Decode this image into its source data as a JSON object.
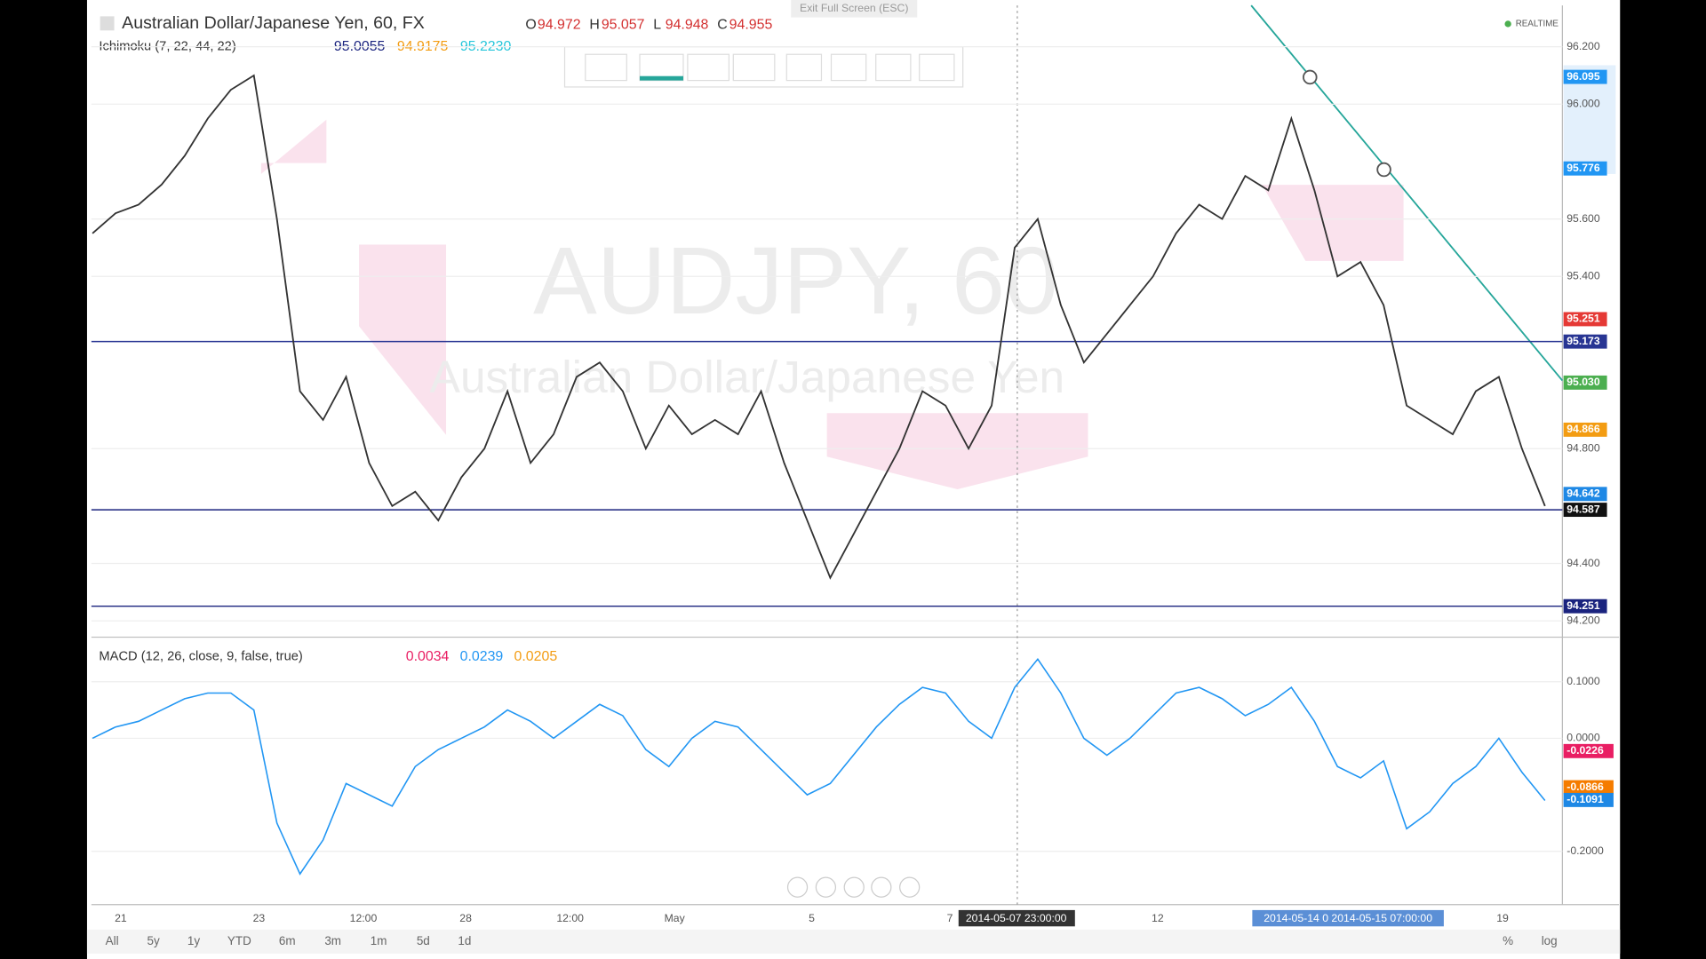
{
  "exit_fullscreen": "Exit Full Screen (ESC)",
  "header": {
    "symbol_title": "Australian Dollar/Japanese Yen, 60, FX",
    "ohlc": [
      {
        "key": "O",
        "value": 94.972
      },
      {
        "key": "H",
        "value": 95.057
      },
      {
        "key": "L",
        "value": 94.948
      },
      {
        "key": "C",
        "value": 94.955
      }
    ],
    "realtime": "REALTIME",
    "ichimoku": {
      "name": "Ichimoku (7, 22, 44, 22)",
      "values": [
        {
          "value": 95.0055,
          "color": "#1a237e"
        },
        {
          "value": 94.9175,
          "color": "#f39c12"
        },
        {
          "value": 95.223,
          "label": "95.2230",
          "color": "#26c6da"
        }
      ]
    }
  },
  "watermark": {
    "symbol": "AUDJPY, 60",
    "name": "Australian Dollar/Japanese Yen"
  },
  "price_axis": {
    "ylim": [
      94.15,
      96.25
    ],
    "ticks": [
      {
        "value": 96.2,
        "label": "96.200"
      },
      {
        "value": 96,
        "label": "96.000"
      },
      {
        "value": 95.6,
        "label": "95.600"
      },
      {
        "value": 95.4,
        "label": "95.400"
      },
      {
        "value": 94.8,
        "label": "94.800"
      },
      {
        "value": 94.4,
        "label": "94.400"
      },
      {
        "value": 94.2,
        "label": "94.200"
      }
    ],
    "tags": [
      {
        "value": 96.095,
        "color": "#2196f3"
      },
      {
        "value": 95.776,
        "color": "#2196f3"
      },
      {
        "value": 95.251,
        "color": "#e53935"
      },
      {
        "value": 95.173,
        "color": "#283593"
      },
      {
        "value": 95.03,
        "label": "95.030",
        "color": "#4caf50"
      },
      {
        "value": 94.866,
        "color": "#f39c12"
      },
      {
        "value": 94.642,
        "color": "#1e88e5"
      },
      {
        "value": 94.587,
        "color": "#111111"
      },
      {
        "value": 94.251,
        "color": "#1a237e"
      }
    ]
  },
  "close_path": [
    95.55,
    95.62,
    95.65,
    95.72,
    95.82,
    95.95,
    96.05,
    96.1,
    95.6,
    95.0,
    94.9,
    95.05,
    94.75,
    94.6,
    94.65,
    94.55,
    94.7,
    94.8,
    95.0,
    94.75,
    94.85,
    95.05,
    95.1,
    95.0,
    94.8,
    94.95,
    94.85,
    94.9,
    94.85,
    95.0,
    94.75,
    94.55,
    94.35,
    94.5,
    94.65,
    94.8,
    95.0,
    94.95,
    94.8,
    94.95,
    95.5,
    95.6,
    95.3,
    95.1,
    95.2,
    95.3,
    95.4,
    95.55,
    95.65,
    95.6,
    95.75,
    95.7,
    95.95,
    95.7,
    95.4,
    95.45,
    95.3,
    94.95,
    94.9,
    94.85,
    95.0,
    95.05,
    94.8,
    94.6
  ],
  "macd": {
    "name": "MACD (12, 26, close, 9, false, true)",
    "values": [
      {
        "value": 0.0034,
        "color": "#e91e63"
      },
      {
        "value": 0.0239,
        "color": "#2196f3"
      },
      {
        "value": 0.0205,
        "color": "#f39c12"
      }
    ],
    "ticks": [
      {
        "value": 0.1,
        "label": "0.1000"
      },
      {
        "value": 0,
        "label": "0.0000"
      },
      {
        "value": -0.2,
        "label": "-0.2000"
      }
    ],
    "tags": [
      {
        "value": -0.0226,
        "color": "#e91e63"
      },
      {
        "value": -0.0866,
        "color": "#f57c00"
      },
      {
        "value": -0.1091,
        "color": "#1e88e5"
      }
    ],
    "line": [
      0.0,
      0.02,
      0.03,
      0.05,
      0.07,
      0.08,
      0.08,
      0.05,
      -0.15,
      -0.24,
      -0.18,
      -0.08,
      -0.1,
      -0.12,
      -0.05,
      -0.02,
      0.0,
      0.02,
      0.05,
      0.03,
      0.0,
      0.03,
      0.06,
      0.04,
      -0.02,
      -0.05,
      0.0,
      0.03,
      0.02,
      -0.02,
      -0.06,
      -0.1,
      -0.08,
      -0.03,
      0.02,
      0.06,
      0.09,
      0.08,
      0.03,
      0.0,
      0.09,
      0.14,
      0.08,
      0.0,
      -0.03,
      0.0,
      0.04,
      0.08,
      0.09,
      0.07,
      0.04,
      0.06,
      0.09,
      0.03,
      -0.05,
      -0.07,
      -0.04,
      -0.16,
      -0.13,
      -0.08,
      -0.05,
      0.0,
      -0.06,
      -0.11
    ]
  },
  "time_axis": [
    "21",
    "23",
    "12:00",
    "28",
    "12:00",
    "May",
    "5",
    "7",
    "12",
    "19"
  ],
  "crosshair_time": "2014-05-07 23:00:00",
  "range_time": "2014-05-14 0 2014-05-15 07:00:00",
  "ranges": [
    "All",
    "5y",
    "1y",
    "YTD",
    "6m",
    "3m",
    "1m",
    "5d",
    "1d"
  ],
  "scale_options": [
    "%",
    "log"
  ]
}
